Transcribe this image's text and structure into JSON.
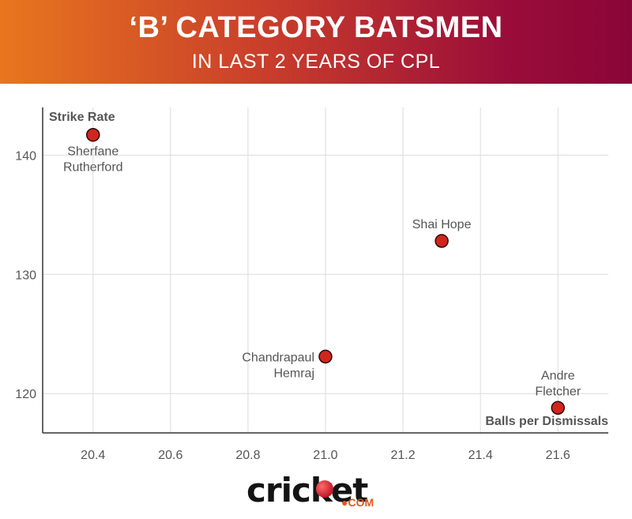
{
  "header": {
    "title": "‘B’ CATEGORY BATSMEN",
    "subtitle": "IN LAST 2 YEARS OF CPL"
  },
  "colors": {
    "marker_fill": "#d0261e",
    "marker_stroke": "#2a0a0a",
    "grid": "#dcdcdc",
    "axis": "#333333",
    "label_text": "#555555"
  },
  "chart_data": {
    "type": "scatter",
    "ylabel": "Strike Rate",
    "xlabel": "Balls per Dismissals",
    "xlim": [
      20.27,
      21.73
    ],
    "ylim": [
      116.7,
      144
    ],
    "x_ticks": [
      20.4,
      20.6,
      20.8,
      21.0,
      21.2,
      21.4,
      21.6
    ],
    "x_tick_labels": [
      "20.4",
      "20.6",
      "20.8",
      "21.0",
      "21.2",
      "21.4",
      "21.6"
    ],
    "y_ticks": [
      120,
      130,
      140
    ],
    "y_tick_labels": [
      "120",
      "130",
      "140"
    ],
    "grid": true,
    "points": [
      {
        "name_lines": [
          "Sherfane",
          "Rutherford"
        ],
        "x": 20.4,
        "y": 141.7,
        "label_pos": "below"
      },
      {
        "name_lines": [
          "Shai Hope"
        ],
        "x": 21.3,
        "y": 132.8,
        "label_pos": "above"
      },
      {
        "name_lines": [
          "Chandrapaul",
          "Hemraj"
        ],
        "x": 21.0,
        "y": 123.1,
        "label_pos": "left"
      },
      {
        "name_lines": [
          "Andre",
          "Fletcher"
        ],
        "x": 21.6,
        "y": 118.8,
        "label_pos": "above"
      }
    ]
  },
  "logo": {
    "word": "cricket",
    "suffix": "●COM"
  }
}
